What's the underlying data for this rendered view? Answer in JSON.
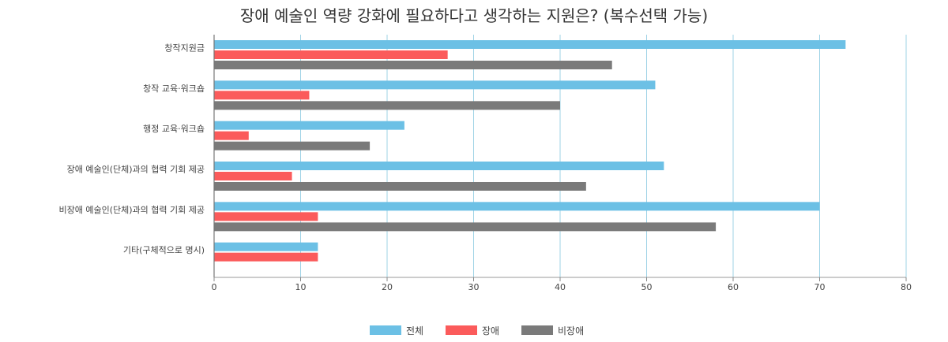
{
  "chart_data": {
    "type": "bar",
    "orientation": "horizontal",
    "title": "장애 예술인 역량 강화에 필요하다고 생각하는 지원은? (복수선택 가능)",
    "xlabel": "",
    "ylabel": "",
    "xlim": [
      0,
      80
    ],
    "ticks": [
      "0",
      "10",
      "20",
      "30",
      "40",
      "50",
      "60",
      "70",
      "80"
    ],
    "grid": "vertical",
    "legend_position": "bottom-center",
    "categories": [
      "창작지원금",
      "창작 교육·워크숍",
      "행정 교육·워크숍",
      "장애 예술인(단체)과의 협력 기회 제공",
      "비장애 예술인(단체)과의 협력 기회 제공",
      "기타(구체적으로 명시)"
    ],
    "series": [
      {
        "name": "전체",
        "color": "#6cc0e5",
        "values": [
          73,
          51,
          22,
          52,
          70,
          12
        ]
      },
      {
        "name": "장애",
        "color": "#fb5b5b",
        "values": [
          27,
          11,
          4,
          9,
          12,
          12
        ]
      },
      {
        "name": "비장애",
        "color": "#7a7a7a",
        "values": [
          46,
          40,
          18,
          43,
          58,
          0
        ]
      }
    ]
  }
}
